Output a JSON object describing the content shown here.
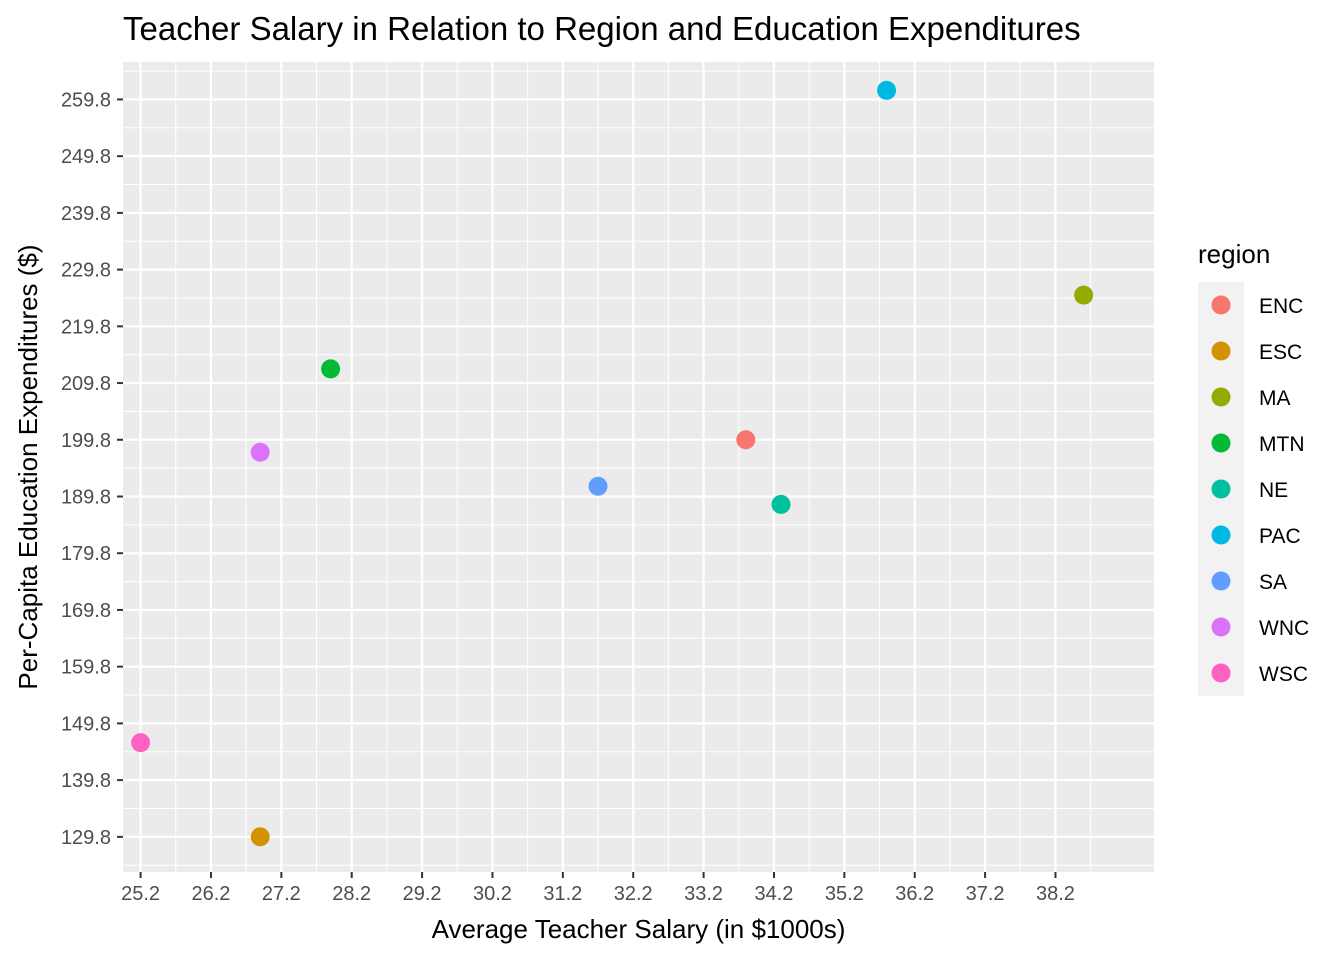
{
  "chart_data": {
    "type": "scatter",
    "title": "Teacher Salary in Relation to Region and Education Expenditures",
    "xlabel": "Average Teacher Salary (in $1000s)",
    "ylabel": "Per-Capita Education Expenditures ($)",
    "xlim": [
      24.95,
      39.6
    ],
    "ylim": [
      123.6,
      266.4
    ],
    "x_ticks": [
      "25.2",
      "26.2",
      "27.2",
      "28.2",
      "29.2",
      "30.2",
      "31.2",
      "32.2",
      "33.2",
      "34.2",
      "35.2",
      "36.2",
      "37.2",
      "38.2"
    ],
    "y_ticks": [
      "129.8",
      "139.8",
      "149.8",
      "159.8",
      "169.8",
      "179.8",
      "189.8",
      "199.8",
      "209.8",
      "219.8",
      "229.8",
      "239.8",
      "249.8",
      "259.8"
    ],
    "grid": true,
    "legend": {
      "title": "region",
      "position": "right"
    },
    "series": [
      {
        "name": "ENC",
        "color": "#F8766D",
        "x": 33.8,
        "y": 199.8
      },
      {
        "name": "ESC",
        "color": "#D39200",
        "x": 26.9,
        "y": 129.8
      },
      {
        "name": "MA",
        "color": "#93AA00",
        "x": 38.6,
        "y": 225.3
      },
      {
        "name": "MTN",
        "color": "#00BA38",
        "x": 27.9,
        "y": 212.3
      },
      {
        "name": "NE",
        "color": "#00C19F",
        "x": 34.3,
        "y": 188.4
      },
      {
        "name": "PAC",
        "color": "#00B9E3",
        "x": 35.8,
        "y": 261.4
      },
      {
        "name": "SA",
        "color": "#619CFF",
        "x": 31.7,
        "y": 191.6
      },
      {
        "name": "WNC",
        "color": "#DB72FB",
        "x": 26.9,
        "y": 197.6
      },
      {
        "name": "WSC",
        "color": "#FF61C3",
        "x": 25.2,
        "y": 146.4
      }
    ]
  }
}
